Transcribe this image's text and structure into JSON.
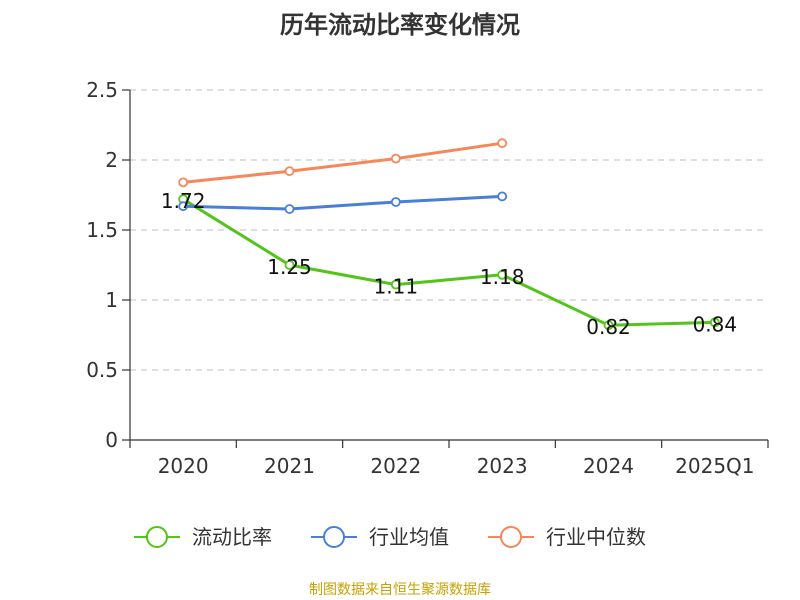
{
  "chart_data": {
    "type": "line",
    "title": "历年流动比率变化情况",
    "categories": [
      "2020",
      "2021",
      "2022",
      "2023",
      "2024",
      "2025Q1"
    ],
    "ylim": [
      0,
      2.5
    ],
    "yticks": [
      "0",
      "0.5",
      "1",
      "1.5",
      "2",
      "2.5"
    ],
    "grid": true,
    "legend_position": "bottom",
    "series": [
      {
        "name": "流动比率",
        "color": "#52c41a",
        "values": [
          1.72,
          1.25,
          1.11,
          1.18,
          0.82,
          0.84
        ],
        "labels": [
          "1.72",
          "1.25",
          "1.11",
          "1.18",
          "0.82",
          "0.84"
        ]
      },
      {
        "name": "行业均值",
        "color": "#4a7fd8",
        "values": [
          1.67,
          1.65,
          1.7,
          1.74,
          null,
          null
        ]
      },
      {
        "name": "行业中位数",
        "color": "#f5875a",
        "values": [
          1.84,
          1.92,
          2.01,
          2.12,
          null,
          null
        ]
      }
    ]
  },
  "footer": {
    "source": "制图数据来自恒生聚源数据库",
    "source_color": "#c8a000"
  }
}
